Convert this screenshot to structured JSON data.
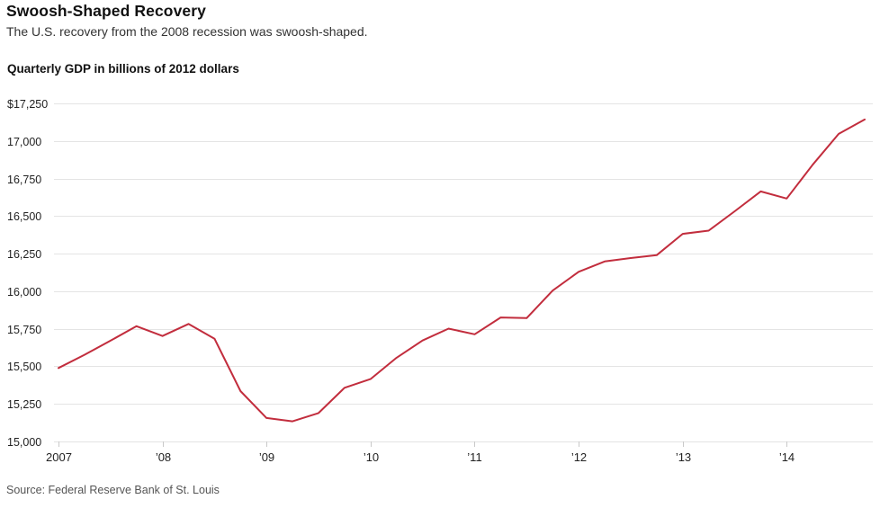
{
  "header": {
    "title": "Swoosh-Shaped Recovery",
    "subtitle": "The U.S. recovery from the 2008 recession was swoosh-shaped.",
    "chart_label": "Quarterly GDP in billions of 2012 dollars"
  },
  "source": "Source: Federal Reserve Bank of St. Louis",
  "chart_data": {
    "type": "line",
    "title": "Quarterly GDP in billions of 2012 dollars",
    "xlabel": "",
    "ylabel": "Quarterly GDP in billions of 2012 dollars",
    "ylim": [
      15000,
      17250
    ],
    "grid": true,
    "legend": false,
    "line_color": "#c22d3d",
    "grid_color": "#e4e4e4",
    "x": [
      "2007 Q1",
      "2007 Q2",
      "2007 Q3",
      "2007 Q4",
      "2008 Q1",
      "2008 Q2",
      "2008 Q3",
      "2008 Q4",
      "2009 Q1",
      "2009 Q2",
      "2009 Q3",
      "2009 Q4",
      "2010 Q1",
      "2010 Q2",
      "2010 Q3",
      "2010 Q4",
      "2011 Q1",
      "2011 Q2",
      "2011 Q3",
      "2011 Q4",
      "2012 Q1",
      "2012 Q2",
      "2012 Q3",
      "2012 Q4",
      "2013 Q1",
      "2013 Q2",
      "2013 Q3",
      "2013 Q4",
      "2014 Q1",
      "2014 Q2",
      "2014 Q3",
      "2014 Q4"
    ],
    "values": [
      15489,
      15577,
      15671,
      15767,
      15702,
      15782,
      15684,
      15335,
      15156,
      15134,
      15189,
      15357,
      15415,
      15557,
      15672,
      15751,
      15713,
      15825,
      15821,
      16004,
      16129,
      16198,
      16221,
      16240,
      16382,
      16403,
      16532,
      16664,
      16617,
      16842,
      17047,
      17143
    ],
    "y_ticks": [
      {
        "value": 17250,
        "label": "$17,250"
      },
      {
        "value": 17000,
        "label": "17,000"
      },
      {
        "value": 16750,
        "label": "16,750"
      },
      {
        "value": 16500,
        "label": "16,500"
      },
      {
        "value": 16250,
        "label": "16,250"
      },
      {
        "value": 16000,
        "label": "16,000"
      },
      {
        "value": 15750,
        "label": "15,750"
      },
      {
        "value": 15500,
        "label": "15,500"
      },
      {
        "value": 15250,
        "label": "15,250"
      },
      {
        "value": 15000,
        "label": "15,000"
      }
    ],
    "x_ticks": [
      {
        "index": 0,
        "label": "2007"
      },
      {
        "index": 4,
        "label": "’08"
      },
      {
        "index": 8,
        "label": "’09"
      },
      {
        "index": 12,
        "label": "’10"
      },
      {
        "index": 16,
        "label": "’11"
      },
      {
        "index": 20,
        "label": "’12"
      },
      {
        "index": 24,
        "label": "’13"
      },
      {
        "index": 28,
        "label": "’14"
      }
    ]
  }
}
